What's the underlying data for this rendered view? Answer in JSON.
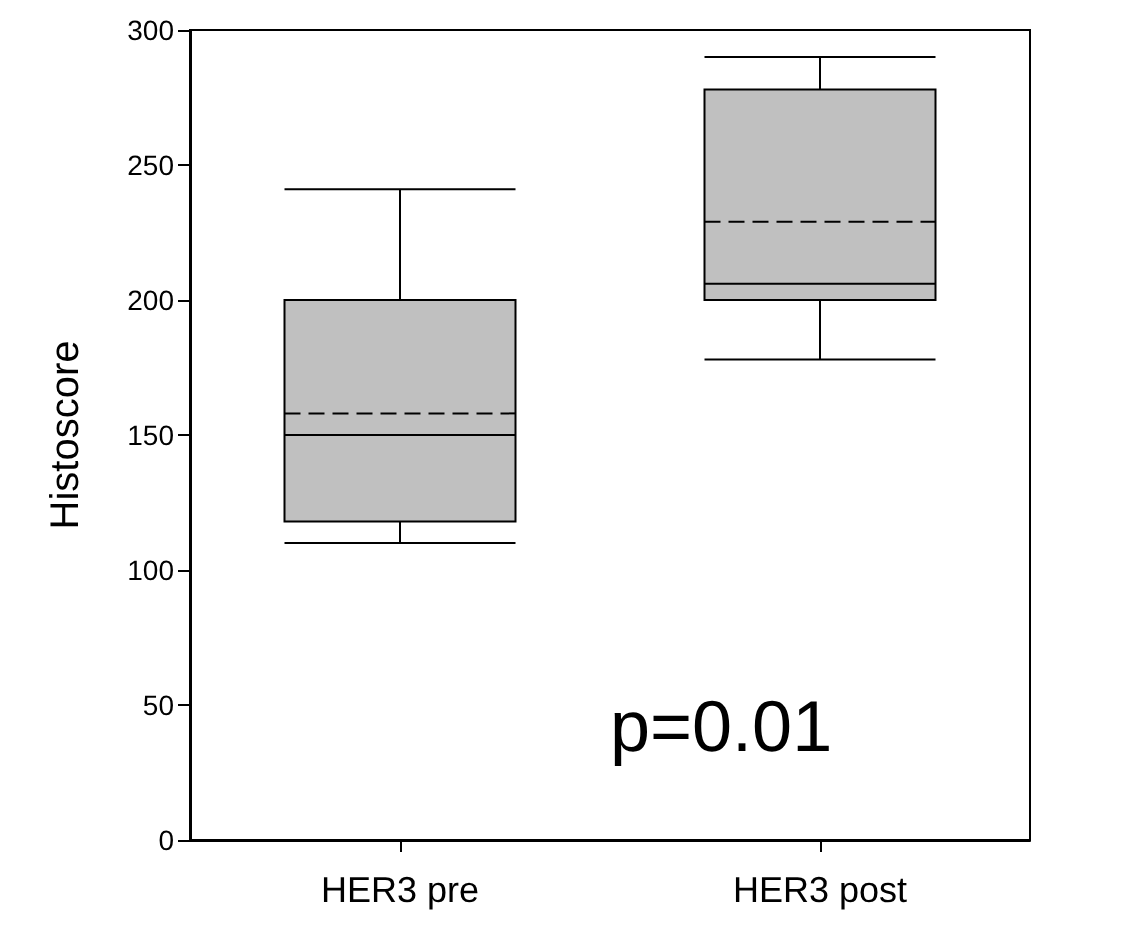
{
  "chart_data": {
    "type": "box",
    "ylabel": "Histoscore",
    "categories": [
      "HER3 pre",
      "HER3 post"
    ],
    "boxes": [
      {
        "low": 110,
        "q1": 118,
        "median": 150,
        "q3": 200,
        "high": 241,
        "mean": 158
      },
      {
        "low": 178,
        "q1": 200,
        "median": 206,
        "q3": 278,
        "high": 290,
        "mean": 229
      }
    ],
    "color": "#c0c0c0",
    "ylim": [
      0,
      300
    ],
    "yticks": [
      0,
      50,
      100,
      150,
      200,
      250,
      300
    ],
    "grid": false,
    "annotations": [
      "p=0.01"
    ]
  }
}
